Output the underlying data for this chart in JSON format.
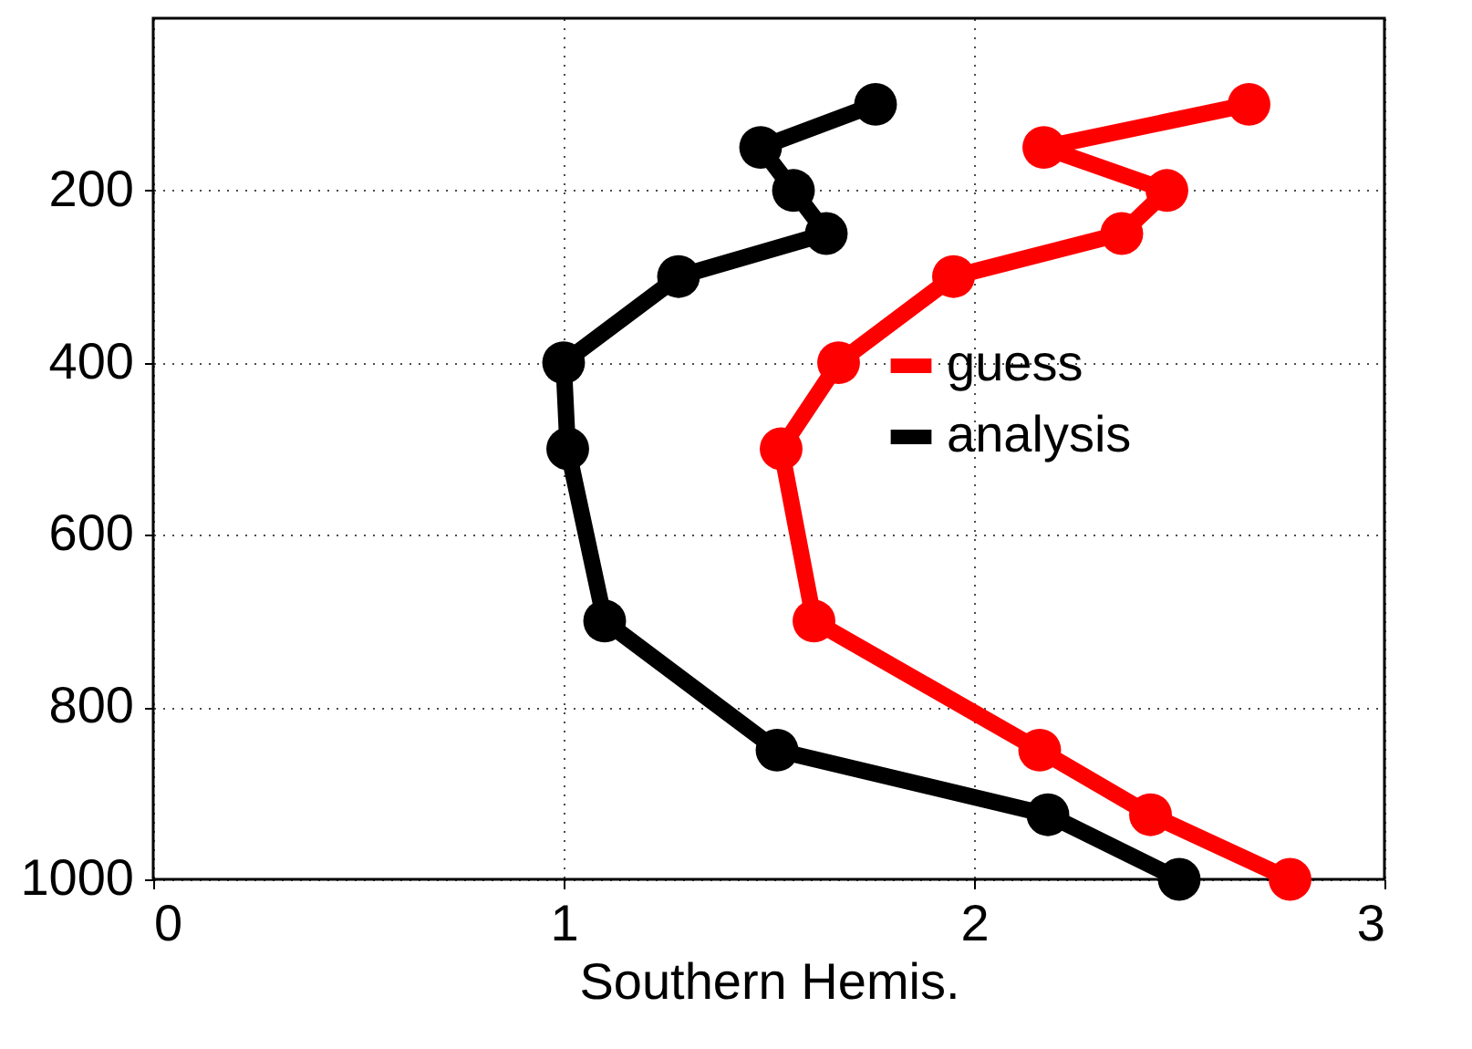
{
  "chart_data": {
    "type": "line",
    "xlabel": "Southern Hemis.",
    "xlim": [
      0,
      3
    ],
    "xticks": [
      0,
      1,
      2,
      3
    ],
    "ylim": [
      1000,
      0
    ],
    "yticks": [
      200,
      400,
      600,
      800,
      1000
    ],
    "grid": true,
    "legend": "right",
    "marker": "circle",
    "line_style": "solid",
    "series": [
      {
        "name": "guess",
        "color": "#ff0000",
        "x": [
          2.67,
          2.17,
          2.47,
          2.36,
          1.95,
          1.67,
          1.53,
          1.61,
          2.16,
          2.43,
          2.77
        ],
        "values": [
          100,
          150,
          200,
          250,
          300,
          400,
          500,
          700,
          850,
          925,
          1000
        ]
      },
      {
        "name": "analysis",
        "color": "#000000",
        "x": [
          1.76,
          1.48,
          1.56,
          1.64,
          1.28,
          1.0,
          1.01,
          1.1,
          1.52,
          2.18,
          2.5
        ],
        "values": [
          100,
          150,
          200,
          250,
          300,
          400,
          500,
          700,
          850,
          925,
          1000
        ]
      }
    ]
  }
}
